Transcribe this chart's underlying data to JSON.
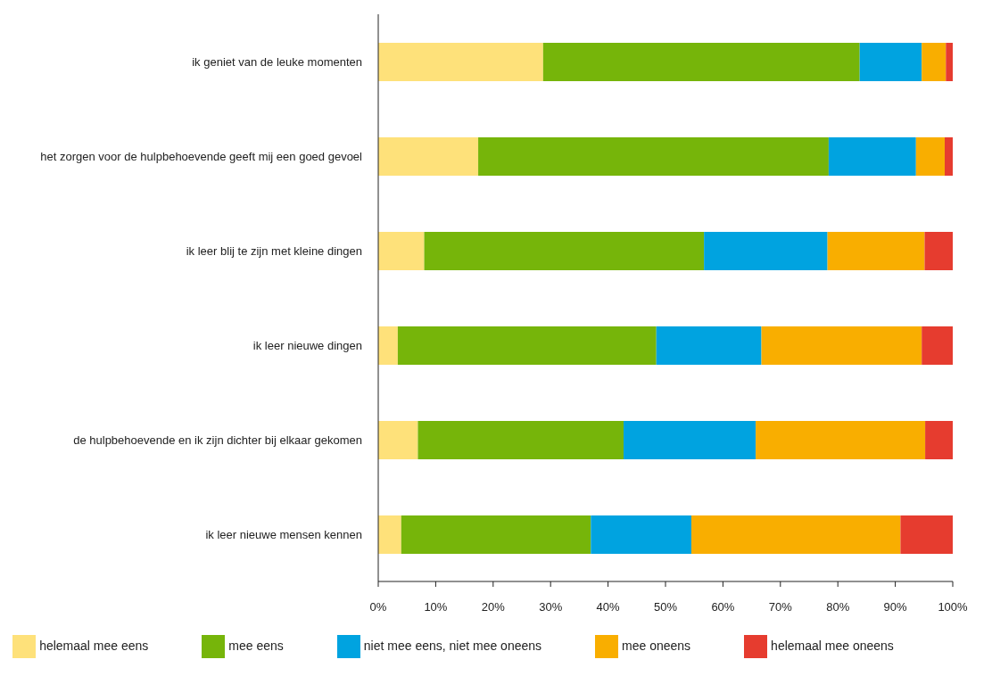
{
  "chart_data": {
    "type": "bar",
    "orientation": "horizontal",
    "stacked": true,
    "categories": [
      "ik geniet van de leuke momenten",
      "het zorgen voor de hulpbehoevende geeft mij een goed gevoel",
      "ik leer blij te zijn met kleine dingen",
      "ik leer nieuwe dingen",
      "de hulpbehoevende en ik zijn dichter bij elkaar gekomen",
      "ik leer nieuwe mensen kennen"
    ],
    "series": [
      {
        "name": "helemaal mee eens",
        "color": "#fee17a",
        "values": [
          28.7,
          17.4,
          8.0,
          3.4,
          6.9,
          4.0
        ]
      },
      {
        "name": "mee eens",
        "color": "#76b50a",
        "values": [
          55.1,
          61.0,
          48.7,
          45.0,
          35.8,
          33.0
        ]
      },
      {
        "name": "niet mee eens, niet mee oneens",
        "color": "#00a3e0",
        "values": [
          10.8,
          15.2,
          21.5,
          18.3,
          23.0,
          17.5
        ]
      },
      {
        "name": "mee oneens",
        "color": "#f9ae00",
        "values": [
          4.2,
          5.0,
          16.9,
          27.9,
          29.5,
          36.4
        ]
      },
      {
        "name": "helemaal mee oneens",
        "color": "#e63c2f",
        "values": [
          1.2,
          1.4,
          4.9,
          5.4,
          4.8,
          9.1
        ]
      }
    ],
    "xlim": [
      0,
      100
    ],
    "xticks": [
      {
        "value": 0,
        "label": "0%"
      },
      {
        "value": 10,
        "label": "10%"
      },
      {
        "value": 20,
        "label": "20%"
      },
      {
        "value": 30,
        "label": "30%"
      },
      {
        "value": 40,
        "label": "40%"
      },
      {
        "value": 50,
        "label": "50%"
      },
      {
        "value": 60,
        "label": "60%"
      },
      {
        "value": 70,
        "label": "70%"
      },
      {
        "value": 80,
        "label": "80%"
      },
      {
        "value": 90,
        "label": "90%"
      },
      {
        "value": 100,
        "label": "100%"
      }
    ],
    "grid": false,
    "legend": "bottom"
  }
}
